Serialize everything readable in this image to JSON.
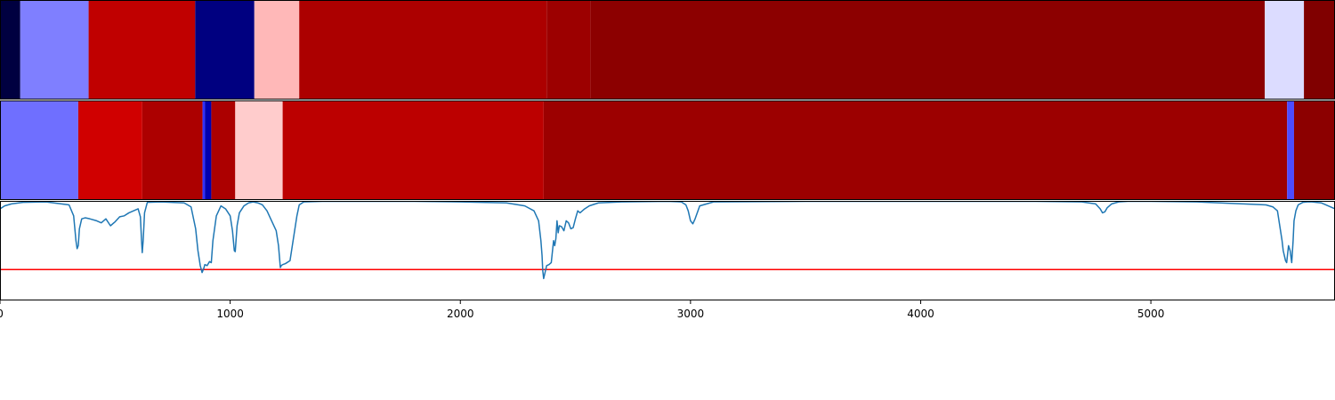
{
  "chart_data": [
    {
      "type": "heatmap",
      "colormap": "seismic",
      "xlim": [
        0,
        5800
      ],
      "segments": [
        {
          "x0": 0,
          "x1": 88,
          "color": "#000040"
        },
        {
          "x0": 88,
          "x1": 385,
          "color": "#7f7fff"
        },
        {
          "x0": 385,
          "x1": 848,
          "color": "#c00000"
        },
        {
          "x0": 848,
          "x1": 1105,
          "color": "#000080"
        },
        {
          "x0": 1105,
          "x1": 1300,
          "color": "#ffb8b8"
        },
        {
          "x0": 1300,
          "x1": 2375,
          "color": "#ac0000"
        },
        {
          "x0": 2375,
          "x1": 2565,
          "color": "#9c0000"
        },
        {
          "x0": 2565,
          "x1": 5495,
          "color": "#8c0000"
        },
        {
          "x0": 5495,
          "x1": 5665,
          "color": "#dcdcff"
        },
        {
          "x0": 5665,
          "x1": 5800,
          "color": "#800000"
        }
      ]
    },
    {
      "type": "heatmap",
      "colormap": "seismic",
      "xlim": [
        0,
        5800
      ],
      "segments": [
        {
          "x0": 0,
          "x1": 340,
          "color": "#6f6fff"
        },
        {
          "x0": 340,
          "x1": 618,
          "color": "#d00000"
        },
        {
          "x0": 618,
          "x1": 880,
          "color": "#ac0000"
        },
        {
          "x0": 880,
          "x1": 890,
          "color": "#3030ff"
        },
        {
          "x0": 890,
          "x1": 918,
          "color": "#0000b0"
        },
        {
          "x0": 918,
          "x1": 1022,
          "color": "#ac0000"
        },
        {
          "x0": 1022,
          "x1": 1228,
          "color": "#ffcccc"
        },
        {
          "x0": 1228,
          "x1": 2362,
          "color": "#bc0000"
        },
        {
          "x0": 2362,
          "x1": 5592,
          "color": "#9c0000"
        },
        {
          "x0": 5592,
          "x1": 5622,
          "color": "#4c4cff"
        },
        {
          "x0": 5622,
          "x1": 5800,
          "color": "#8c0000"
        }
      ]
    },
    {
      "type": "line",
      "xlim": [
        0,
        5800
      ],
      "ylim": [
        0,
        1
      ],
      "x_ticks": [
        0,
        1000,
        2000,
        3000,
        4000,
        5000
      ],
      "x_tick_labels": [
        "0",
        "1000",
        "2000",
        "3000",
        "4000",
        "5000"
      ],
      "threshold": {
        "y": 0.31,
        "color": "#ff0000"
      },
      "series": [
        {
          "color": "#1f77b4",
          "x": [
            0,
            20,
            50,
            100,
            200,
            300,
            320,
            330,
            335,
            340,
            345,
            355,
            370,
            390,
            420,
            440,
            460,
            480,
            500,
            520,
            540,
            560,
            580,
            600,
            610,
            615,
            618,
            622,
            628,
            640,
            700,
            800,
            830,
            850,
            860,
            870,
            878,
            885,
            890,
            900,
            910,
            918,
            925,
            940,
            960,
            980,
            1000,
            1010,
            1018,
            1022,
            1030,
            1040,
            1060,
            1080,
            1100,
            1120,
            1140,
            1160,
            1180,
            1200,
            1210,
            1218,
            1222,
            1228,
            1240,
            1260,
            1270,
            1280,
            1290,
            1300,
            1320,
            1400,
            1600,
            1800,
            2000,
            2200,
            2280,
            2320,
            2340,
            2350,
            2355,
            2358,
            2362,
            2368,
            2375,
            2385,
            2395,
            2405,
            2410,
            2415,
            2420,
            2425,
            2430,
            2440,
            2450,
            2460,
            2470,
            2480,
            2490,
            2500,
            2510,
            2520,
            2540,
            2560,
            2600,
            2700,
            2900,
            2960,
            2980,
            2990,
            3000,
            3010,
            3020,
            3040,
            3100,
            3500,
            4000,
            4500,
            4700,
            4760,
            4780,
            4790,
            4800,
            4810,
            4830,
            4860,
            4900,
            5000,
            5200,
            5400,
            5500,
            5530,
            5550,
            5560,
            5570,
            5575,
            5580,
            5585,
            5590,
            5598,
            5605,
            5612,
            5618,
            5622,
            5630,
            5640,
            5660,
            5680,
            5700,
            5740,
            5760,
            5780,
            5800
          ],
          "y": [
            0.92,
            0.95,
            0.97,
            0.985,
            0.99,
            0.96,
            0.85,
            0.6,
            0.52,
            0.55,
            0.72,
            0.82,
            0.83,
            0.82,
            0.8,
            0.78,
            0.82,
            0.75,
            0.79,
            0.84,
            0.85,
            0.88,
            0.9,
            0.92,
            0.84,
            0.6,
            0.48,
            0.6,
            0.88,
            0.985,
            0.99,
            0.98,
            0.94,
            0.72,
            0.5,
            0.35,
            0.28,
            0.32,
            0.36,
            0.35,
            0.39,
            0.38,
            0.6,
            0.85,
            0.95,
            0.92,
            0.85,
            0.7,
            0.5,
            0.49,
            0.75,
            0.88,
            0.95,
            0.98,
            0.99,
            0.98,
            0.96,
            0.9,
            0.8,
            0.7,
            0.55,
            0.33,
            0.35,
            0.36,
            0.37,
            0.4,
            0.55,
            0.7,
            0.85,
            0.96,
            0.99,
            0.995,
            0.995,
            0.995,
            0.99,
            0.98,
            0.95,
            0.9,
            0.8,
            0.6,
            0.45,
            0.3,
            0.22,
            0.28,
            0.35,
            0.36,
            0.38,
            0.6,
            0.55,
            0.62,
            0.8,
            0.68,
            0.75,
            0.74,
            0.7,
            0.8,
            0.78,
            0.72,
            0.73,
            0.82,
            0.9,
            0.88,
            0.92,
            0.95,
            0.98,
            0.99,
            0.995,
            0.99,
            0.96,
            0.9,
            0.8,
            0.77,
            0.82,
            0.95,
            0.99,
            0.995,
            0.995,
            0.995,
            0.99,
            0.97,
            0.92,
            0.88,
            0.89,
            0.93,
            0.97,
            0.99,
            0.995,
            0.995,
            0.99,
            0.97,
            0.96,
            0.94,
            0.9,
            0.75,
            0.6,
            0.5,
            0.45,
            0.4,
            0.38,
            0.55,
            0.5,
            0.38,
            0.6,
            0.8,
            0.9,
            0.96,
            0.985,
            0.99,
            0.99,
            0.98,
            0.96,
            0.94,
            0.92
          ]
        }
      ]
    }
  ]
}
